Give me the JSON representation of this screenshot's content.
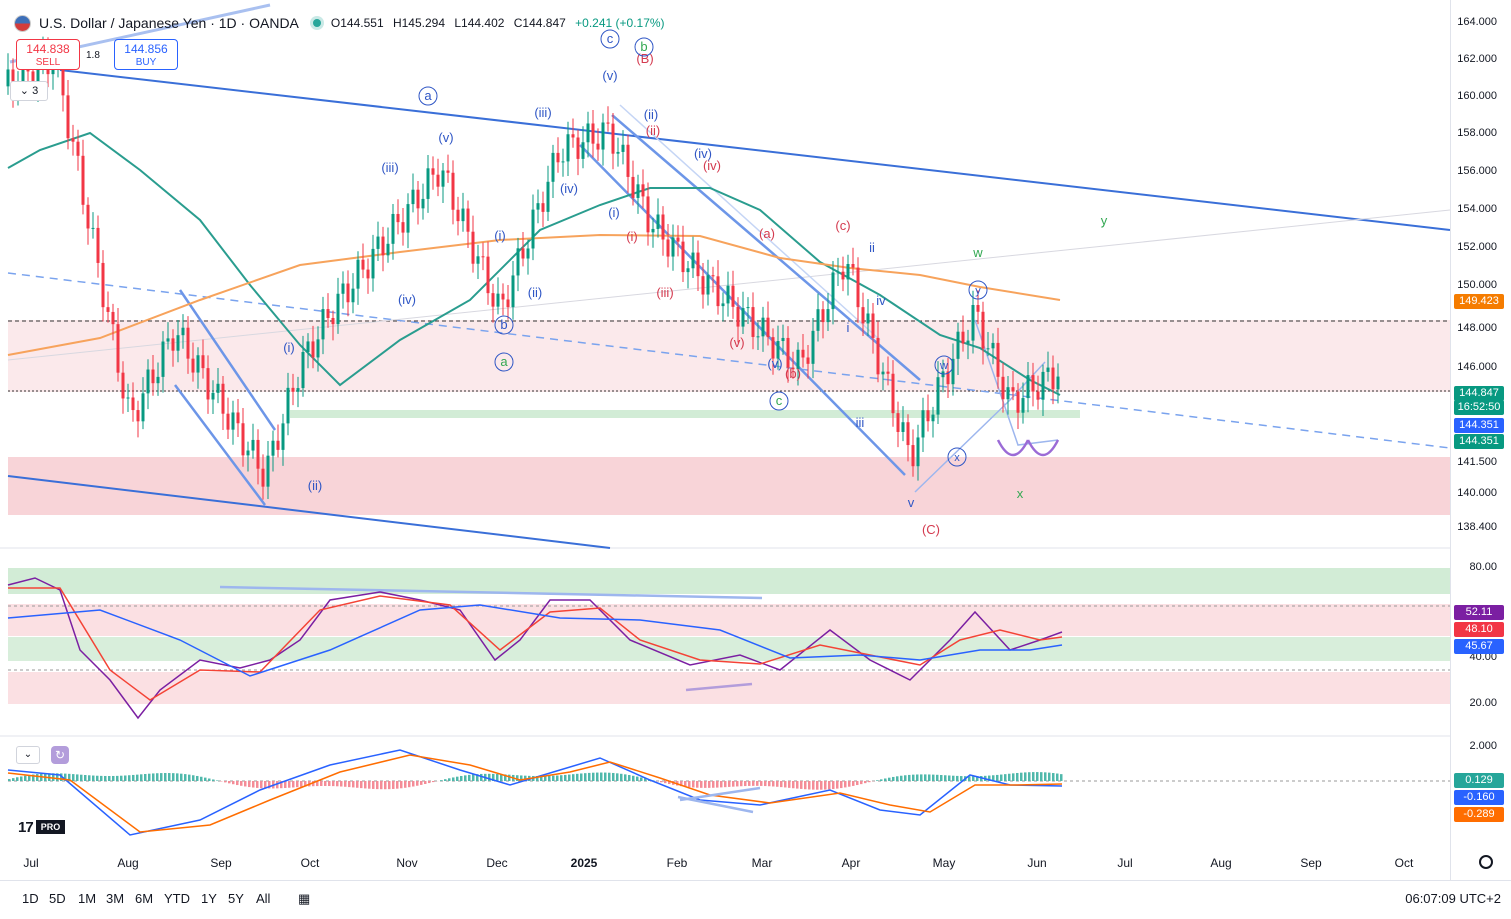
{
  "header": {
    "symbol_title": "U.S. Dollar / Japanese Yen · 1D · OANDA",
    "open": "O144.551",
    "high": "H145.294",
    "low": "L144.402",
    "close": "C144.847",
    "change": "+0.241 (+0.17%)"
  },
  "trade": {
    "sell_price": "144.838",
    "sell_label": "SELL",
    "spread": "1.8",
    "buy_price": "144.856",
    "buy_label": "BUY"
  },
  "collapse_label": "3",
  "price_axis": [
    "164.000",
    "162.000",
    "160.000",
    "158.000",
    "156.000",
    "154.000",
    "152.000",
    "150.000",
    "148.000",
    "146.000",
    "141.500",
    "140.000",
    "138.400"
  ],
  "price_tags": {
    "ma200": "149.423",
    "last": "144.847",
    "countdown": "16:52:50",
    "tag2": "144.351",
    "tag3": "144.351"
  },
  "rsi_axis": [
    "80.00",
    "40.00",
    "20.00"
  ],
  "rsi_tags": {
    "rsi": "52.11",
    "ma": "48.10",
    "ma2": "45.67"
  },
  "macd_axis": [
    "2.000"
  ],
  "macd_tags": {
    "hist": "0.129",
    "macd": "-0.160",
    "signal": "-0.289"
  },
  "time_axis": [
    "Jul",
    "Aug",
    "Sep",
    "Oct",
    "Nov",
    "Dec",
    "2025",
    "Feb",
    "Mar",
    "Apr",
    "May",
    "Jun",
    "Jul",
    "Aug",
    "Sep",
    "Oct"
  ],
  "wave_labels": {
    "blue": [
      "a",
      "c",
      "(v)",
      "(iii)",
      "(v)",
      "(iii)",
      "(iv)",
      "(iv)",
      "(i)",
      "(ii)",
      "b",
      "(i)",
      "(ii)",
      "(iv)",
      "(i)",
      "(ii)",
      "(v)",
      "ii",
      "iv",
      "iii",
      "v",
      "i"
    ],
    "red": [
      "(B)",
      "(ii)",
      "(iv)",
      "(i)",
      "(a)",
      "(c)",
      "(iii)",
      "(v)",
      "(b)",
      "(C)"
    ],
    "green": [
      "b",
      "a",
      "c",
      "w",
      "y",
      "x"
    ],
    "purple": [
      "w",
      "x",
      "y"
    ]
  },
  "footer": {
    "timeframes": [
      "1D",
      "5D",
      "1M",
      "3M",
      "6M",
      "YTD",
      "1Y",
      "5Y",
      "All"
    ],
    "clock": "06:07:09 UTC+2"
  },
  "branding": {
    "logo": "17",
    "pro": "PRO"
  },
  "colors": {
    "up": "#089981",
    "down": "#f23645",
    "ma_teal": "#2a9d8f",
    "ma_orange": "#f7a35c",
    "channel": "#3a6fd8",
    "rsi": "#7b1fa2",
    "rsi_ma": "#f44336",
    "rsi_ma2": "#2962ff",
    "macd": "#2962ff",
    "signal": "#ff6d00"
  }
}
